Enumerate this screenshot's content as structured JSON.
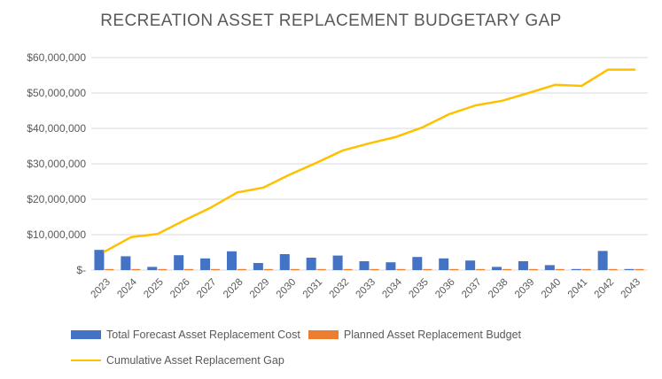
{
  "chart_data": {
    "type": "bar+line combo",
    "title": "RECREATION ASSET REPLACEMENT BUDGETARY GAP",
    "categories": [
      "2023",
      "2024",
      "2025",
      "2026",
      "2027",
      "2028",
      "2029",
      "2030",
      "2031",
      "2032",
      "2033",
      "2034",
      "2035",
      "2036",
      "2037",
      "2038",
      "2039",
      "2040",
      "2041",
      "2042",
      "2043"
    ],
    "series": [
      {
        "name": "Total Forecast Asset Replacement Cost",
        "type": "bar",
        "color": "#4472C4",
        "values": [
          5700000,
          3900000,
          900000,
          4200000,
          3300000,
          5300000,
          2000000,
          4500000,
          3500000,
          4100000,
          2500000,
          2200000,
          3700000,
          3300000,
          2700000,
          900000,
          2500000,
          1400000,
          300000,
          5400000,
          300000
        ]
      },
      {
        "name": "Planned Asset Replacement Budget",
        "type": "bar",
        "color": "#ED7D31",
        "values": [
          300000,
          300000,
          300000,
          300000,
          300000,
          300000,
          300000,
          300000,
          300000,
          300000,
          300000,
          300000,
          300000,
          300000,
          300000,
          300000,
          300000,
          300000,
          300000,
          300000,
          300000
        ]
      },
      {
        "name": "Cumulative Asset Replacement Gap",
        "type": "line",
        "color": "#FFC000",
        "values": [
          5200000,
          9300000,
          10200000,
          14000000,
          17600000,
          21900000,
          23300000,
          27000000,
          30300000,
          33800000,
          35800000,
          37600000,
          40300000,
          44000000,
          46500000,
          47800000,
          50000000,
          52300000,
          52000000,
          56600000,
          56600000
        ]
      }
    ],
    "ylim": [
      0,
      60000000
    ],
    "ytick_interval": 10000000,
    "ytick_labels": [
      "$-",
      "$10,000,000",
      "$20,000,000",
      "$30,000,000",
      "$40,000,000",
      "$50,000,000",
      "$60,000,000"
    ],
    "grid": "horizontal",
    "legend_position": "bottom-left",
    "x_label_rotation": -45
  },
  "colors": {
    "bar_forecast": "#4472C4",
    "bar_budget": "#ED7D31",
    "line_gap": "#FFC000",
    "text": "#595959",
    "gridline": "#d9d9d9"
  }
}
